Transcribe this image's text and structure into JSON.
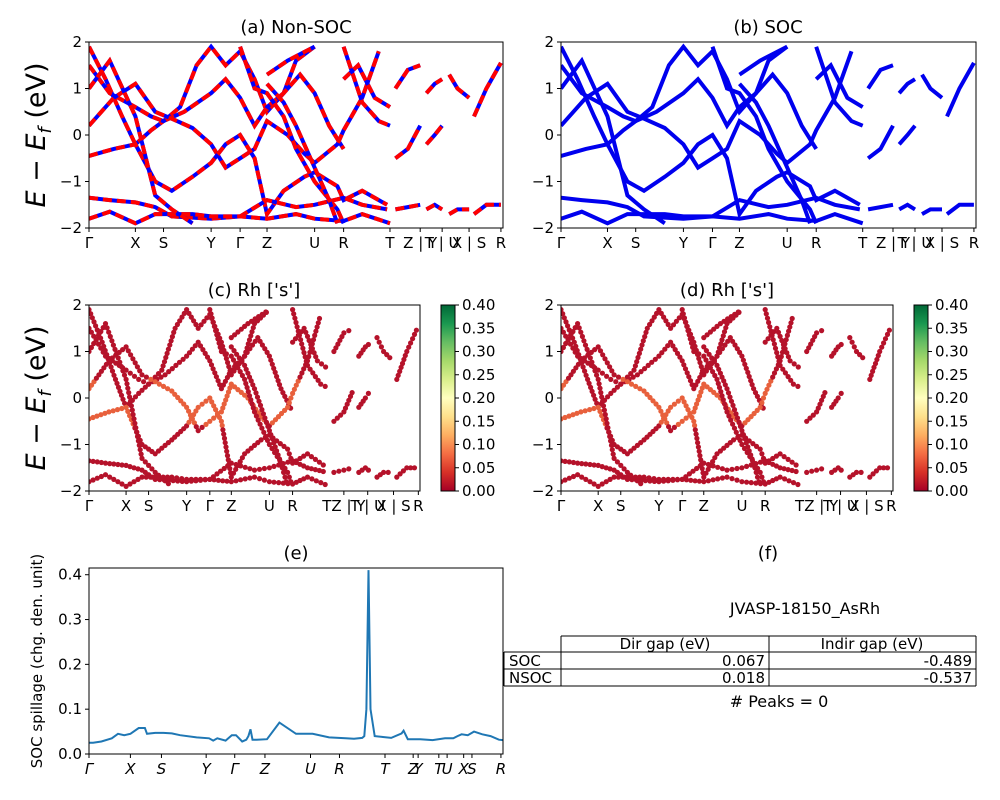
{
  "chart_data": [
    {
      "id": "a",
      "type": "line",
      "title": "(a) Non-SOC",
      "ylabel": "E − E_f (eV)",
      "ylim": [
        -2,
        2
      ],
      "yticks": [
        "−2",
        "−1",
        "0",
        "1",
        "2"
      ],
      "kpath_labels": [
        "Γ",
        "X",
        "S",
        "Y",
        "Γ",
        "Z",
        "U",
        "R",
        "T",
        "Z | Y",
        "T | U",
        "X | S",
        "R"
      ],
      "colors": {
        "dashA": "#ff0000",
        "dashB": "#0000ff"
      }
    },
    {
      "id": "b",
      "type": "line",
      "title": "(b) SOC",
      "ylim": [
        -2,
        2
      ],
      "yticks": [
        "−2",
        "−1",
        "0",
        "1",
        "2"
      ],
      "kpath_labels": [
        "Γ",
        "X",
        "S",
        "Y",
        "Γ",
        "Z",
        "U",
        "R",
        "T",
        "Z | Y",
        "T | U",
        "X | S",
        "R"
      ],
      "colors": {
        "line": "#0000ee"
      }
    },
    {
      "id": "c",
      "type": "scatter",
      "title": "(c)  Rh ['s']",
      "ylabel": "E − E_f (eV)",
      "ylim": [
        -2,
        2
      ],
      "yticks": [
        "−2",
        "−1",
        "0",
        "1",
        "2"
      ],
      "kpath_labels": [
        "Γ",
        "X",
        "S",
        "Y",
        "Γ",
        "Z",
        "U",
        "R",
        "TZ | Y",
        "T | U",
        "X | S",
        "R"
      ],
      "colorbar": {
        "ticks": [
          "0.00",
          "0.05",
          "0.10",
          "0.15",
          "0.20",
          "0.25",
          "0.30",
          "0.35",
          "0.40"
        ],
        "range": [
          0,
          0.4
        ]
      }
    },
    {
      "id": "d",
      "type": "scatter",
      "title": "(d) Rh ['s']",
      "ylim": [
        -2,
        2
      ],
      "yticks": [
        "−2",
        "−1",
        "0",
        "1",
        "2"
      ],
      "kpath_labels": [
        "Γ",
        "X",
        "S",
        "Y",
        "Γ",
        "Z",
        "U",
        "R",
        "TZ | Y",
        "T | U",
        "X | S",
        "R"
      ],
      "colorbar": {
        "ticks": [
          "0.00",
          "0.05",
          "0.10",
          "0.15",
          "0.20",
          "0.25",
          "0.30",
          "0.35",
          "0.40"
        ],
        "range": [
          0,
          0.4
        ]
      }
    },
    {
      "id": "e",
      "type": "line",
      "title": "(e)",
      "ylabel": "SOC spillage (chg. den. unit)",
      "ylim": [
        0,
        0.415
      ],
      "yticks": [
        "0.0",
        "0.1",
        "0.2",
        "0.3",
        "0.4"
      ],
      "kpath_labels": [
        "Γ",
        "X",
        "S",
        "Y",
        "Γ",
        "Z",
        "U",
        "R",
        "T",
        "Z",
        "Y",
        "T",
        "U",
        "X",
        "S",
        "R"
      ],
      "series": [
        {
          "x": [
            0,
            0.01,
            0.03,
            0.055,
            0.07,
            0.085,
            0.1,
            0.12,
            0.135,
            0.14,
            0.16,
            0.18,
            0.2,
            0.22,
            0.26,
            0.29,
            0.3,
            0.31,
            0.33,
            0.345,
            0.355,
            0.37,
            0.38,
            0.385,
            0.39,
            0.395,
            0.405,
            0.43,
            0.46,
            0.5,
            0.54,
            0.58,
            0.62,
            0.64,
            0.66,
            0.665,
            0.67,
            0.675,
            0.68,
            0.69,
            0.71,
            0.73,
            0.755,
            0.76,
            0.77,
            0.8,
            0.83,
            0.86,
            0.88,
            0.89,
            0.9,
            0.915,
            0.93,
            0.95,
            0.97,
            0.99,
            1.0
          ],
          "values": [
            0.025,
            0.025,
            0.028,
            0.035,
            0.045,
            0.042,
            0.045,
            0.058,
            0.058,
            0.045,
            0.047,
            0.047,
            0.046,
            0.042,
            0.037,
            0.035,
            0.03,
            0.035,
            0.03,
            0.042,
            0.042,
            0.028,
            0.032,
            0.04,
            0.055,
            0.032,
            0.032,
            0.033,
            0.07,
            0.045,
            0.045,
            0.037,
            0.035,
            0.034,
            0.036,
            0.04,
            0.1,
            0.41,
            0.1,
            0.04,
            0.038,
            0.036,
            0.046,
            0.052,
            0.033,
            0.033,
            0.031,
            0.035,
            0.035,
            0.04,
            0.044,
            0.042,
            0.05,
            0.044,
            0.04,
            0.032,
            0.031
          ]
        }
      ],
      "colors": {
        "line": "#1f77b4"
      }
    }
  ],
  "panel_f": {
    "title": "(f)",
    "material": "JVASP-18150_AsRh",
    "table": {
      "headers": [
        "Dir gap (eV)",
        "Indir gap (eV)"
      ],
      "rows": [
        {
          "label": "SOC",
          "dir": "0.067",
          "indir": "-0.489"
        },
        {
          "label": "NSOC",
          "dir": "0.018",
          "indir": "-0.537"
        }
      ]
    },
    "peaks": "# Peaks = 0"
  }
}
